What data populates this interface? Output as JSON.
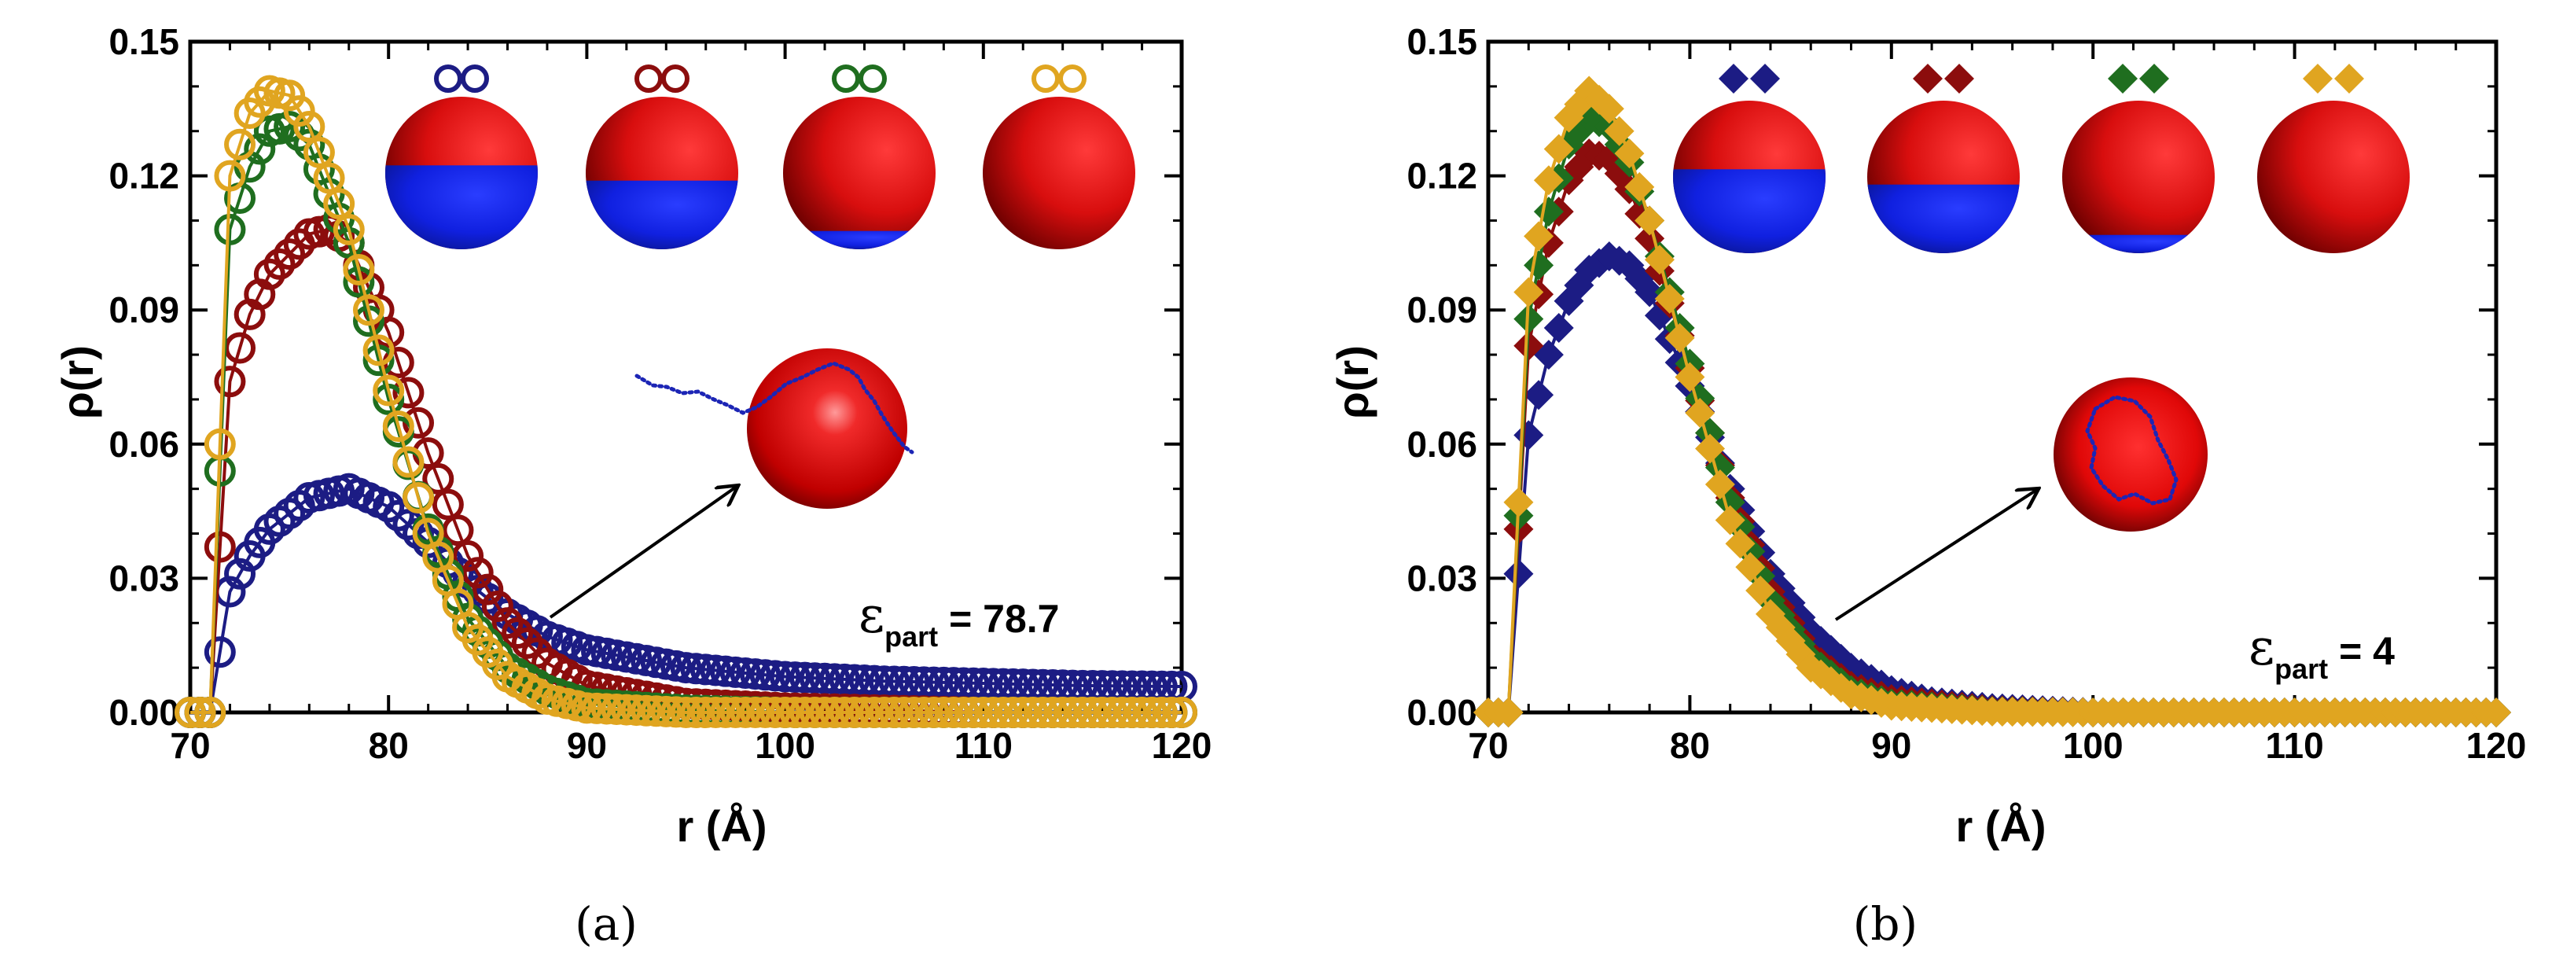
{
  "panels": [
    {
      "caption": "(a)",
      "xlabel": "r (Å)",
      "ylabel": "ρ(r)",
      "xlim": [
        70,
        120
      ],
      "ylim": [
        0.0,
        0.15
      ],
      "xticks": [
        "70",
        "80",
        "90",
        "100",
        "110",
        "120"
      ],
      "yticks": [
        "0.00",
        "0.03",
        "0.06",
        "0.09",
        "0.12",
        "0.15"
      ],
      "annotation": {
        "symbol": "ε",
        "subscript": "part",
        "text": " = 78.7"
      }
    },
    {
      "caption": "(b)",
      "xlabel": "r (Å)",
      "ylabel": "ρ(r)",
      "xlim": [
        70,
        120
      ],
      "ylim": [
        0.0,
        0.15
      ],
      "xticks": [
        "70",
        "80",
        "90",
        "100",
        "110",
        "120"
      ],
      "yticks": [
        "0.00",
        "0.03",
        "0.06",
        "0.09",
        "0.12",
        "0.15"
      ],
      "annotation": {
        "symbol": "ε",
        "subscript": "part",
        "text": " = 4"
      }
    }
  ],
  "colors": {
    "navy": "#1c1c84",
    "darkred": "#8c0d0d",
    "green": "#1f6e1f",
    "gold": "#e0a520"
  },
  "chart_data": [
    {
      "type": "scatter",
      "marker": "open-circle",
      "xlabel": "r (Å)",
      "ylabel": "ρ(r)",
      "xlim": [
        70,
        120
      ],
      "ylim": [
        0.0,
        0.15
      ],
      "annotation": "εpart = 78.7",
      "series": [
        {
          "name": "navy",
          "color": "#1c1c84",
          "sphere_blue_fraction": 0.55,
          "x": [
            70,
            71,
            72,
            73,
            74,
            76,
            78,
            80,
            82,
            84,
            86,
            88,
            90,
            95,
            100,
            105,
            110,
            115,
            120
          ],
          "y": [
            0.0,
            0.0,
            0.027,
            0.035,
            0.041,
            0.048,
            0.05,
            0.046,
            0.038,
            0.029,
            0.022,
            0.017,
            0.014,
            0.01,
            0.008,
            0.007,
            0.0065,
            0.006,
            0.0058
          ]
        },
        {
          "name": "darkred",
          "color": "#8c0d0d",
          "sphere_blue_fraction": 0.45,
          "x": [
            70,
            71,
            72,
            73,
            74,
            76,
            77,
            78,
            80,
            82,
            84,
            86,
            88,
            90,
            95,
            100,
            110,
            120
          ],
          "y": [
            0.0,
            0.0,
            0.074,
            0.089,
            0.098,
            0.107,
            0.108,
            0.105,
            0.085,
            0.058,
            0.035,
            0.02,
            0.011,
            0.006,
            0.002,
            0.001,
            0.0,
            0.0
          ]
        },
        {
          "name": "green",
          "color": "#1f6e1f",
          "sphere_blue_fraction": 0.12,
          "x": [
            70,
            71,
            72,
            73,
            74,
            75,
            76,
            78,
            80,
            82,
            84,
            86,
            88,
            90,
            95,
            100,
            110,
            120
          ],
          "y": [
            0.0,
            0.0,
            0.108,
            0.122,
            0.13,
            0.131,
            0.127,
            0.105,
            0.07,
            0.041,
            0.021,
            0.01,
            0.005,
            0.002,
            0.0005,
            0.0,
            0.0,
            0.0
          ]
        },
        {
          "name": "gold",
          "color": "#e0a520",
          "sphere_blue_fraction": 0.0,
          "x": [
            70,
            71,
            72,
            73,
            74,
            75,
            76,
            78,
            80,
            82,
            84,
            86,
            88,
            90,
            95,
            100,
            110,
            120
          ],
          "y": [
            0.0,
            0.0,
            0.12,
            0.134,
            0.139,
            0.138,
            0.131,
            0.108,
            0.072,
            0.04,
            0.019,
            0.008,
            0.003,
            0.001,
            0.0,
            0.0,
            0.0,
            0.0
          ]
        }
      ]
    },
    {
      "type": "scatter",
      "marker": "filled-diamond",
      "xlabel": "r (Å)",
      "ylabel": "ρ(r)",
      "xlim": [
        70,
        120
      ],
      "ylim": [
        0.0,
        0.15
      ],
      "annotation": "εpart = 4",
      "series": [
        {
          "name": "navy",
          "color": "#1c1c84",
          "sphere_blue_fraction": 0.55,
          "x": [
            70,
            71,
            72,
            73,
            74,
            75,
            76,
            77,
            78,
            80,
            82,
            84,
            86,
            88,
            90,
            92,
            95,
            100,
            110,
            120
          ],
          "y": [
            0.0,
            0.0,
            0.062,
            0.08,
            0.092,
            0.099,
            0.102,
            0.1,
            0.094,
            0.073,
            0.05,
            0.031,
            0.018,
            0.01,
            0.005,
            0.0025,
            0.001,
            0.0,
            0.0,
            0.0
          ]
        },
        {
          "name": "darkred",
          "color": "#8c0d0d",
          "sphere_blue_fraction": 0.45,
          "x": [
            70,
            71,
            72,
            73,
            74,
            75,
            76,
            77,
            78,
            80,
            82,
            84,
            86,
            88,
            90,
            95,
            100,
            110,
            120
          ],
          "y": [
            0.0,
            0.0,
            0.082,
            0.105,
            0.119,
            0.125,
            0.124,
            0.117,
            0.106,
            0.077,
            0.048,
            0.027,
            0.013,
            0.006,
            0.003,
            0.0005,
            0.0,
            0.0,
            0.0
          ]
        },
        {
          "name": "green",
          "color": "#1f6e1f",
          "sphere_blue_fraction": 0.12,
          "x": [
            70,
            71,
            72,
            73,
            74,
            75,
            76,
            77,
            78,
            80,
            82,
            84,
            86,
            88,
            90,
            95,
            100,
            110,
            120
          ],
          "y": [
            0.0,
            0.0,
            0.088,
            0.112,
            0.127,
            0.133,
            0.131,
            0.123,
            0.11,
            0.078,
            0.047,
            0.025,
            0.012,
            0.005,
            0.002,
            0.0003,
            0.0,
            0.0,
            0.0
          ]
        },
        {
          "name": "gold",
          "color": "#e0a520",
          "sphere_blue_fraction": 0.0,
          "x": [
            70,
            71,
            72,
            73,
            74,
            75,
            76,
            77,
            78,
            80,
            82,
            84,
            86,
            88,
            90,
            95,
            100,
            110,
            120
          ],
          "y": [
            0.0,
            0.0,
            0.094,
            0.119,
            0.133,
            0.139,
            0.135,
            0.125,
            0.11,
            0.075,
            0.043,
            0.022,
            0.01,
            0.004,
            0.0015,
            0.0002,
            0.0,
            0.0,
            0.0
          ]
        }
      ]
    }
  ]
}
